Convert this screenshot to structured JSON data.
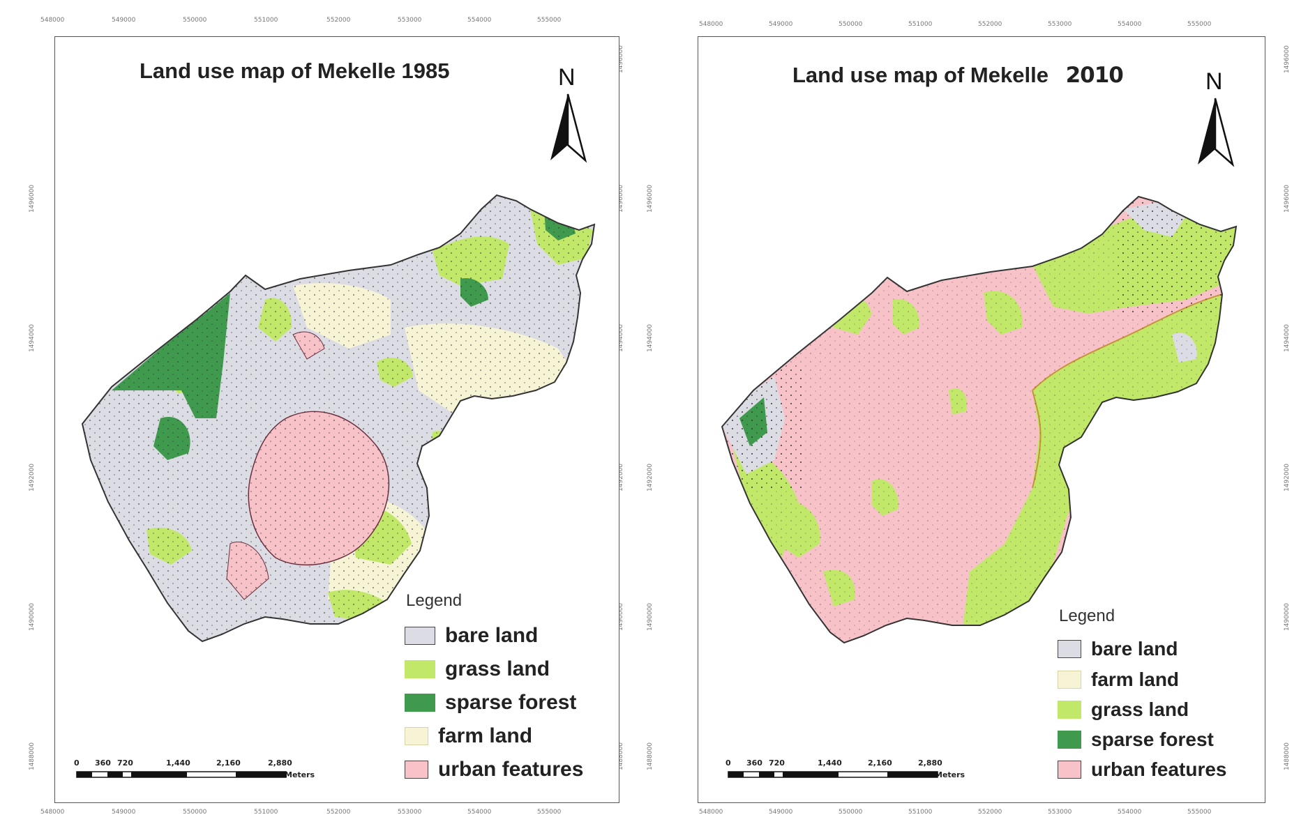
{
  "maps": [
    {
      "title": "Land use map of Mekelle 1985",
      "title_year": "",
      "north": "N",
      "legend_title": "Legend",
      "legend": [
        {
          "label": "bare land",
          "color": "#dcdce4"
        },
        {
          "label": "grass land",
          "color": "#c2e86a"
        },
        {
          "label": "sparse forest",
          "color": "#3f9a4e"
        },
        {
          "label": "farm land",
          "color": "#f7f4d6"
        },
        {
          "label": "urban features",
          "color": "#f7c2c8"
        }
      ],
      "scale_ticks": [
        "0",
        "360",
        "720",
        "1,440",
        "2,160",
        "2,880"
      ],
      "scale_unit": "Meters",
      "x_ticks": [
        "548000",
        "549000",
        "550000",
        "551000",
        "552000",
        "553000",
        "554000",
        "555000"
      ],
      "y_ticks": [
        "1496000",
        "1496000",
        "1494000",
        "1492000",
        "1490000",
        "1488000"
      ]
    },
    {
      "title": "Land use map of Mekelle",
      "title_year": "2010",
      "north": "N",
      "legend_title": "Legend",
      "legend": [
        {
          "label": "bare land",
          "color": "#dcdce4"
        },
        {
          "label": "farm land",
          "color": "#f7f4d6"
        },
        {
          "label": "grass land",
          "color": "#c2e86a"
        },
        {
          "label": "sparse forest",
          "color": "#3f9a4e"
        },
        {
          "label": "urban features",
          "color": "#f7c2c8"
        }
      ],
      "scale_ticks": [
        "0",
        "360",
        "720",
        "1,440",
        "2,160",
        "2,880"
      ],
      "scale_unit": "Meters",
      "x_ticks": [
        "548000",
        "549000",
        "550000",
        "551000",
        "552000",
        "553000",
        "554000",
        "555000"
      ],
      "y_ticks": [
        "1496000",
        "1496000",
        "1494000",
        "1492000",
        "1490000",
        "1488000"
      ]
    }
  ]
}
